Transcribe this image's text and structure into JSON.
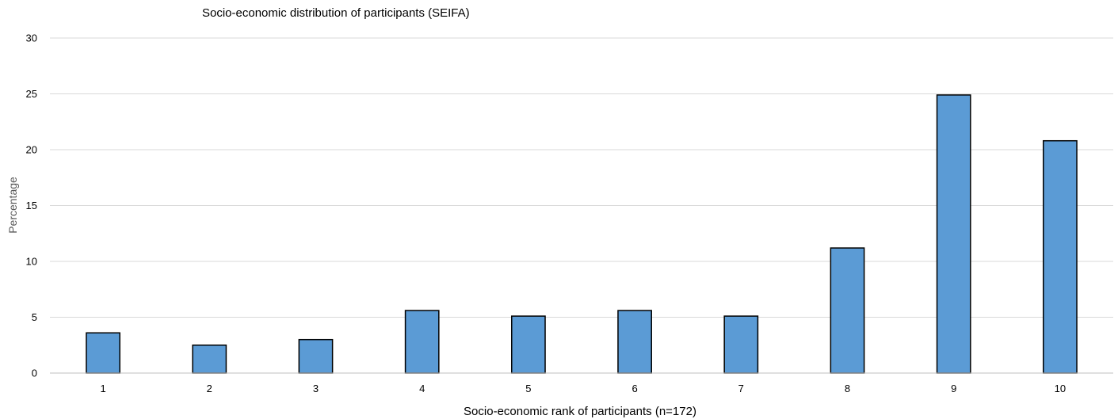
{
  "chart_data": {
    "type": "bar",
    "title": "Socio-economic distribution of participants (SEIFA)",
    "xlabel": "Socio-economic rank of participants (n=172)",
    "ylabel": "Percentage",
    "categories": [
      "1",
      "2",
      "3",
      "4",
      "5",
      "6",
      "7",
      "8",
      "9",
      "10"
    ],
    "values": [
      3.6,
      2.5,
      3.0,
      5.6,
      5.1,
      5.6,
      5.1,
      11.2,
      24.9,
      20.8
    ],
    "ylim": [
      0,
      30
    ],
    "yticks": [
      "0",
      "5",
      "10",
      "15",
      "20",
      "25",
      "30"
    ],
    "grid": true,
    "legend": "none",
    "bar_color": "#5b9bd5"
  }
}
